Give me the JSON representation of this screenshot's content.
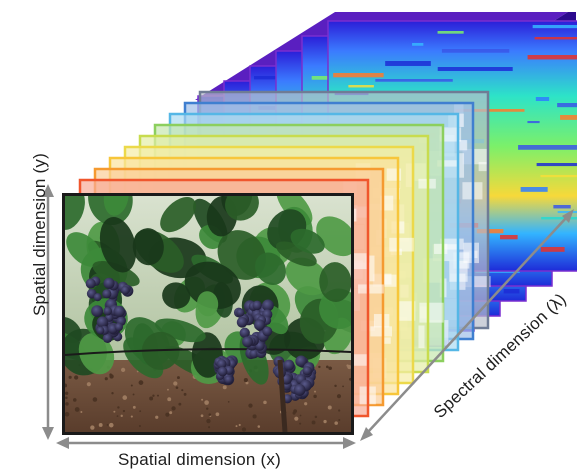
{
  "labels": {
    "spatial_y": "Spatial dimension  (y)",
    "spatial_x": "Spatial dimension  (x)",
    "spectral": "Spectral dimension  (λ)"
  },
  "colors": {
    "band_frames": [
      "#f0562d",
      "#f59a30",
      "#f7c63a",
      "#ecd94a",
      "#c8dc4e",
      "#8ccf5e",
      "#55b7e6",
      "#3f7fd0",
      "#6f7c95"
    ],
    "cube_back_top": "#7a2fd0",
    "cube_side": "#3d10a8",
    "arrow": "#8c8c8c",
    "photo_frame": "#1a1a1a"
  },
  "cube": {
    "num_band_layers": 9
  }
}
